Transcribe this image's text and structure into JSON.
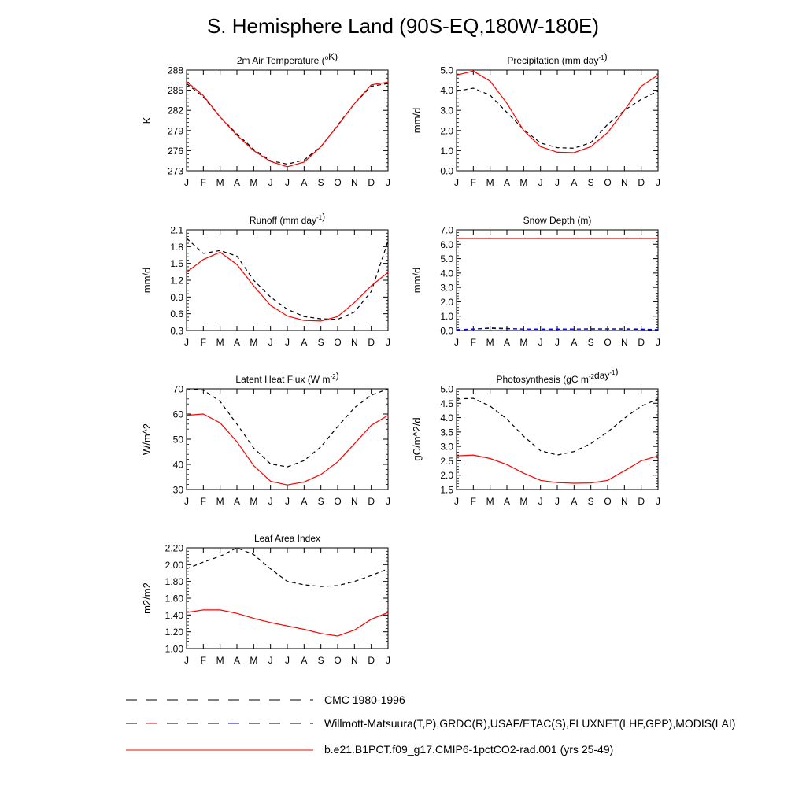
{
  "title": "S. Hemisphere Land (90S-EQ,180W-180E)",
  "months": [
    "J",
    "F",
    "M",
    "A",
    "M",
    "J",
    "J",
    "A",
    "S",
    "O",
    "N",
    "D",
    "J"
  ],
  "legend": [
    {
      "label": "CMC 1980-1996",
      "style": "dash-black"
    },
    {
      "label": "Willmott-Matsuura(T,P),GRDC(R),USAF/ETAC(S),FLUXNET(LHF,GPP),MODIS(LAI)",
      "style": "dash-black-red-blue"
    },
    {
      "label": "b.e21.B1PCT.f09_g17.CMIP6-1pctCO2-rad.001 (yrs 25-49)",
      "style": "solid-red"
    }
  ],
  "colors": {
    "model": "#ff0000",
    "obs": "#000000",
    "obs_alt": "#0000ff"
  },
  "chart_data": [
    {
      "type": "line",
      "title": "2m Air Temperature (",
      "title_sup": "o",
      "title_after": "K)",
      "ylabel": "K",
      "ylim": [
        273,
        288
      ],
      "yticks": [
        "273",
        "276",
        "279",
        "282",
        "285",
        "288"
      ],
      "series": [
        {
          "role": "obs",
          "values": [
            286.0,
            284.0,
            281.0,
            278.5,
            276.2,
            274.5,
            274.0,
            274.6,
            276.6,
            279.8,
            283.0,
            285.6,
            286.0
          ]
        },
        {
          "role": "model",
          "values": [
            286.3,
            284.2,
            281.0,
            278.3,
            276.0,
            274.4,
            273.6,
            274.3,
            276.6,
            279.7,
            283.0,
            285.8,
            286.2
          ]
        }
      ]
    },
    {
      "type": "line",
      "title": "Precipitation (mm day",
      "title_sup": "-1",
      "title_after": ")",
      "ylabel": "mm/d",
      "ylim": [
        0.0,
        5.0
      ],
      "yticks": [
        "0.0",
        "1.0",
        "2.0",
        "3.0",
        "4.0",
        "5.0"
      ],
      "series": [
        {
          "role": "obs",
          "values": [
            3.95,
            4.1,
            3.75,
            2.9,
            2.05,
            1.38,
            1.15,
            1.12,
            1.4,
            2.3,
            3.0,
            3.55,
            3.95
          ]
        },
        {
          "role": "model",
          "values": [
            4.75,
            4.95,
            4.45,
            3.35,
            2.0,
            1.2,
            0.92,
            0.9,
            1.2,
            1.9,
            3.0,
            4.2,
            4.75
          ]
        }
      ]
    },
    {
      "type": "line",
      "title": "Runoff (mm day",
      "title_sup": "-1",
      "title_after": ")",
      "ylabel": "mm/d",
      "ylim": [
        0.3,
        2.1
      ],
      "yticks": [
        "0.3",
        "0.6",
        "0.9",
        "1.2",
        "1.5",
        "1.8",
        "2.1"
      ],
      "series": [
        {
          "role": "obs",
          "values": [
            1.95,
            1.68,
            1.73,
            1.63,
            1.2,
            0.9,
            0.68,
            0.55,
            0.51,
            0.5,
            0.63,
            1.0,
            1.9
          ]
        },
        {
          "role": "model",
          "values": [
            1.34,
            1.57,
            1.7,
            1.48,
            1.1,
            0.75,
            0.56,
            0.48,
            0.47,
            0.55,
            0.8,
            1.1,
            1.34
          ]
        }
      ]
    },
    {
      "type": "line",
      "title": "Snow Depth (m)",
      "title_sup": "",
      "title_after": "",
      "ylabel": "mm/d",
      "ylim": [
        0.0,
        7.0
      ],
      "yticks": [
        "0.0",
        "1.0",
        "2.0",
        "3.0",
        "4.0",
        "5.0",
        "6.0",
        "7.0"
      ],
      "series": [
        {
          "role": "obs",
          "values": [
            0.05,
            0.1,
            0.18,
            0.14,
            0.1,
            0.1,
            0.1,
            0.1,
            0.1,
            0.1,
            0.1,
            0.08,
            0.05
          ]
        },
        {
          "role": "obs_alt",
          "values": [
            0.06,
            0.1,
            0.15,
            0.12,
            0.1,
            0.08,
            0.08,
            0.1,
            0.12,
            0.12,
            0.12,
            0.1,
            0.06
          ]
        },
        {
          "role": "model",
          "values": [
            6.4,
            6.4,
            6.4,
            6.4,
            6.4,
            6.4,
            6.4,
            6.4,
            6.4,
            6.4,
            6.4,
            6.4,
            6.4
          ]
        }
      ]
    },
    {
      "type": "line",
      "title": "Latent Heat Flux (W m",
      "title_sup": "-2",
      "title_after": ")",
      "ylabel": "W/m^2",
      "ylim": [
        30,
        70
      ],
      "yticks": [
        "30",
        "40",
        "50",
        "60",
        "70"
      ],
      "series": [
        {
          "role": "obs",
          "values": [
            70,
            69.5,
            65,
            56,
            46.5,
            40.2,
            39,
            41.5,
            47,
            55,
            62.5,
            67.5,
            70
          ]
        },
        {
          "role": "model",
          "values": [
            59.5,
            60,
            56.5,
            49,
            39.5,
            33.3,
            31.8,
            33,
            36,
            41,
            48.2,
            55.5,
            59.5
          ]
        }
      ]
    },
    {
      "type": "line",
      "title": "Photosynthesis (gC m",
      "title_sup": "-2",
      "title_mid": "day",
      "title_sup2": "-1",
      "title_after": ")",
      "ylabel": "gC/m^2/d",
      "ylim": [
        1.5,
        5.0
      ],
      "yticks": [
        "1.5",
        "2.0",
        "2.5",
        "3.0",
        "3.5",
        "4.0",
        "4.5",
        "5.0"
      ],
      "series": [
        {
          "role": "obs",
          "values": [
            4.65,
            4.67,
            4.4,
            3.95,
            3.35,
            2.85,
            2.7,
            2.82,
            3.1,
            3.5,
            3.98,
            4.4,
            4.65
          ]
        },
        {
          "role": "model",
          "values": [
            2.67,
            2.7,
            2.58,
            2.37,
            2.07,
            1.82,
            1.74,
            1.72,
            1.73,
            1.82,
            2.15,
            2.5,
            2.67
          ]
        }
      ]
    },
    {
      "type": "line",
      "title": "Leaf Area Index",
      "title_sup": "",
      "title_after": "",
      "ylabel": "m2/m2",
      "ylim": [
        1.0,
        2.2
      ],
      "yticks": [
        "1.00",
        "1.20",
        "1.40",
        "1.60",
        "1.80",
        "2.00",
        "2.20"
      ],
      "series": [
        {
          "role": "obs",
          "values": [
            1.95,
            2.03,
            2.1,
            2.2,
            2.12,
            1.95,
            1.8,
            1.76,
            1.74,
            1.75,
            1.8,
            1.87,
            1.95
          ]
        },
        {
          "role": "model",
          "values": [
            1.43,
            1.46,
            1.46,
            1.42,
            1.36,
            1.31,
            1.27,
            1.23,
            1.18,
            1.15,
            1.22,
            1.35,
            1.43
          ]
        }
      ]
    }
  ]
}
